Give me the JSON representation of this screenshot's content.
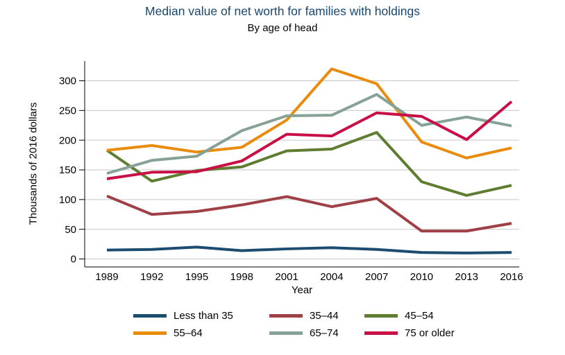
{
  "chart_data": {
    "type": "line",
    "title": "Median value of net worth for families with holdings",
    "subtitle": "By age of head",
    "xlabel": "Year",
    "ylabel": "Thousands of 2016 dollars",
    "x": [
      1989,
      1992,
      1995,
      1998,
      2001,
      2004,
      2007,
      2010,
      2013,
      2016
    ],
    "ylim": [
      0,
      300
    ],
    "yticks": [
      0,
      50,
      100,
      150,
      200,
      250,
      300
    ],
    "grid": true,
    "legend_position": "bottom",
    "series": [
      {
        "name": "Less than 35",
        "color": "#1d4c71",
        "values": [
          15,
          16,
          20,
          14,
          17,
          19,
          16,
          11,
          10,
          11
        ]
      },
      {
        "name": "35–44",
        "color": "#9e4045",
        "values": [
          106,
          75,
          80,
          91,
          105,
          88,
          102,
          47,
          47,
          60
        ]
      },
      {
        "name": "45–54",
        "color": "#5e7d31",
        "values": [
          183,
          131,
          149,
          155,
          182,
          185,
          213,
          130,
          107,
          124
        ]
      },
      {
        "name": "55–64",
        "color": "#e98b0d",
        "values": [
          183,
          191,
          180,
          188,
          234,
          320,
          295,
          197,
          170,
          187
        ]
      },
      {
        "name": "65–74",
        "color": "#86a195",
        "values": [
          144,
          166,
          173,
          216,
          241,
          242,
          277,
          225,
          239,
          224
        ]
      },
      {
        "name": "75 or older",
        "color": "#c90f46",
        "values": [
          135,
          146,
          147,
          165,
          210,
          207,
          246,
          240,
          201,
          265
        ]
      }
    ],
    "colors": {
      "title": "#1a476f",
      "gridline": "#c6c6c6",
      "axis": "#000000"
    }
  }
}
